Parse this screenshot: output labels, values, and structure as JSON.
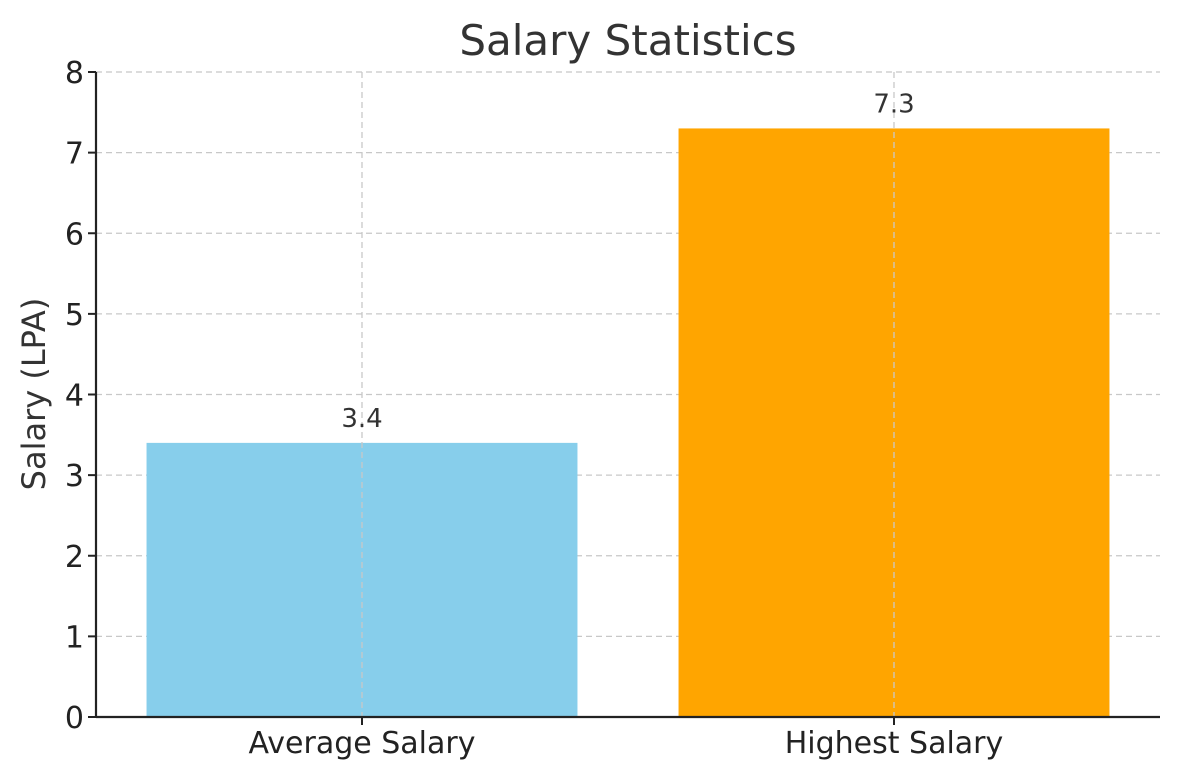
{
  "chart_data": {
    "type": "bar",
    "title": "Salary Statistics",
    "xlabel": "",
    "ylabel": "Salary (LPA)",
    "categories": [
      "Average Salary",
      "Highest Salary"
    ],
    "values": [
      3.4,
      7.3
    ],
    "data_labels": [
      "3.4",
      "7.3"
    ],
    "colors": [
      "#87CEEB",
      "#FFA500"
    ],
    "ylim": [
      0,
      8
    ],
    "yticks": [
      0,
      1,
      2,
      3,
      4,
      5,
      6,
      7,
      8
    ],
    "ytick_labels": [
      "0",
      "1",
      "2",
      "3",
      "4",
      "5",
      "6",
      "7",
      "8"
    ],
    "grid": true,
    "legend": false
  }
}
